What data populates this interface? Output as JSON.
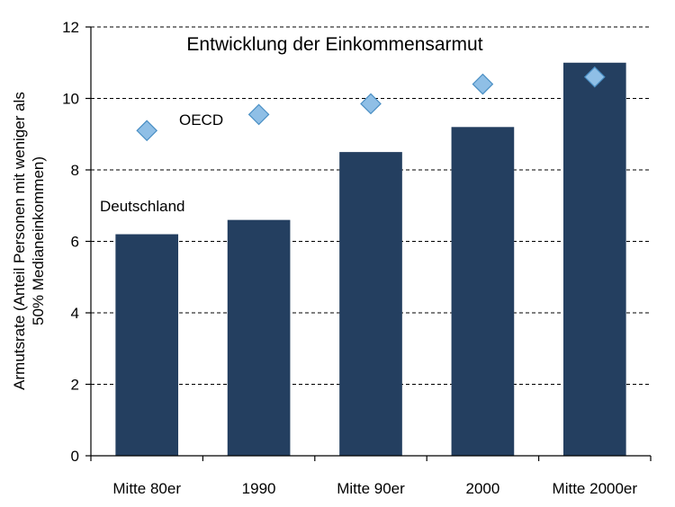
{
  "chart_data": {
    "type": "bar",
    "title": "Entwicklung der Einkommensarmut",
    "xlabel": "",
    "ylabel_lines": [
      "Armutsrate (Anteil Personen mit weniger als",
      "50% Medianeinkommen)"
    ],
    "categories": [
      "Mitte 80er",
      "1990",
      "Mitte 90er",
      "2000",
      "Mitte 2000er"
    ],
    "ylim": [
      0,
      12
    ],
    "yticks": [
      0,
      2,
      4,
      6,
      8,
      10,
      12
    ],
    "grid": "horizontal-dashed",
    "series": [
      {
        "name": "Deutschland",
        "type": "bar",
        "color": "#243f60",
        "values": [
          6.2,
          6.6,
          8.5,
          9.2,
          11.0
        ]
      },
      {
        "name": "OECD",
        "type": "scatter",
        "marker": "diamond",
        "color": "#8fbfe6",
        "edge_color": "#4a8fc4",
        "values": [
          9.1,
          9.55,
          9.85,
          10.4,
          10.6
        ]
      }
    ],
    "annotations": [
      {
        "text": "OECD",
        "near_series": "OECD"
      },
      {
        "text": "Deutschland",
        "near_series": "Deutschland"
      }
    ]
  }
}
